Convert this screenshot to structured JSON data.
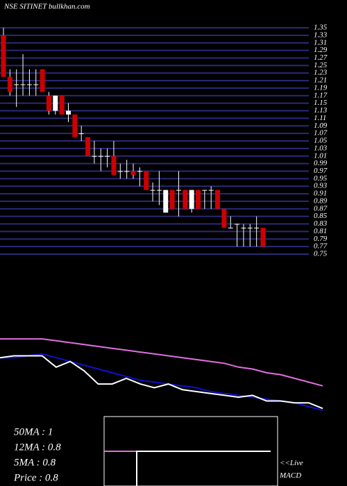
{
  "title": "NSE SITINET bullkhan.com",
  "chart_data": [
    {
      "type": "candlestick",
      "ylim": [
        0.75,
        1.35
      ],
      "yticks": [
        1.35,
        1.33,
        1.31,
        1.29,
        1.27,
        1.25,
        1.23,
        1.21,
        1.19,
        1.17,
        1.15,
        1.13,
        1.11,
        1.09,
        1.07,
        1.05,
        1.03,
        1.01,
        0.99,
        0.97,
        0.95,
        0.93,
        0.91,
        0.89,
        0.87,
        0.85,
        0.83,
        0.81,
        0.79,
        0.77,
        0.75
      ],
      "grid": true,
      "grid_color": "#2a2a7a",
      "up_color": "#ffffff",
      "down_color": "#cc0000",
      "open": [
        1.33,
        1.22,
        1.2,
        1.2,
        1.2,
        1.2,
        1.24,
        1.17,
        1.13,
        1.17,
        1.12,
        1.12,
        1.07,
        1.06,
        1.01,
        1.01,
        1.01,
        1.01,
        0.97,
        0.97,
        0.97,
        0.97,
        0.97,
        0.92,
        0.92,
        0.86,
        0.92,
        0.92,
        0.92,
        0.87,
        0.92,
        0.92,
        0.92,
        0.92,
        0.87,
        0.82,
        0.83,
        0.82,
        0.82,
        0.82,
        0.82
      ],
      "high": [
        1.35,
        1.24,
        1.24,
        1.28,
        1.24,
        1.24,
        1.24,
        1.18,
        1.17,
        1.17,
        1.15,
        1.12,
        1.09,
        1.06,
        1.05,
        1.03,
        1.03,
        1.05,
        0.99,
        1.0,
        0.99,
        0.98,
        0.97,
        0.94,
        0.97,
        0.92,
        0.92,
        0.97,
        0.92,
        0.92,
        0.92,
        0.92,
        0.93,
        0.92,
        0.87,
        0.85,
        0.83,
        0.83,
        0.83,
        0.85,
        0.82
      ],
      "low": [
        1.22,
        1.17,
        1.14,
        1.17,
        1.17,
        1.17,
        1.18,
        1.12,
        1.12,
        1.12,
        1.1,
        1.06,
        1.05,
        1.01,
        0.99,
        0.97,
        0.98,
        0.96,
        0.95,
        0.95,
        0.95,
        0.93,
        0.92,
        0.89,
        0.88,
        0.86,
        0.87,
        0.85,
        0.87,
        0.86,
        0.87,
        0.87,
        0.87,
        0.87,
        0.82,
        0.82,
        0.77,
        0.77,
        0.77,
        0.77,
        0.77
      ],
      "close": [
        1.22,
        1.18,
        1.2,
        1.2,
        1.2,
        1.2,
        1.18,
        1.13,
        1.17,
        1.12,
        1.13,
        1.06,
        1.07,
        1.01,
        1.01,
        1.01,
        1.01,
        0.96,
        0.97,
        0.97,
        0.96,
        0.97,
        0.92,
        0.92,
        0.92,
        0.92,
        0.87,
        0.92,
        0.87,
        0.92,
        0.87,
        0.92,
        0.92,
        0.87,
        0.82,
        0.82,
        0.83,
        0.82,
        0.82,
        0.82,
        0.77
      ]
    },
    {
      "type": "line",
      "ylim": [
        0.72,
        1.2
      ],
      "series": [
        {
          "name": "50MA : 1",
          "color": "#e070e0",
          "values": [
            1.17,
            1.17,
            1.17,
            1.17,
            1.16,
            1.15,
            1.14,
            1.13,
            1.12,
            1.11,
            1.1,
            1.09,
            1.08,
            1.07,
            1.06,
            1.05,
            1.04,
            1.02,
            1.01,
            0.99,
            0.98,
            0.96,
            0.94,
            0.92
          ]
        },
        {
          "name": "12MA : 0.8",
          "color": "#1010d0",
          "values": [
            1.07,
            1.07,
            1.08,
            1.09,
            1.07,
            1.05,
            1.03,
            1.01,
            0.99,
            0.97,
            0.95,
            0.94,
            0.93,
            0.92,
            0.91,
            0.89,
            0.88,
            0.87,
            0.86,
            0.85,
            0.84,
            0.83,
            0.81,
            0.79
          ]
        },
        {
          "name": "5MA : 0.8",
          "color": "#ffffff",
          "values": [
            1.07,
            1.08,
            1.08,
            1.08,
            1.02,
            1.05,
            1.0,
            0.93,
            0.93,
            0.96,
            0.93,
            0.91,
            0.93,
            0.9,
            0.89,
            0.88,
            0.87,
            0.86,
            0.87,
            0.84,
            0.84,
            0.83,
            0.83,
            0.8
          ]
        }
      ],
      "price_label": "Price   : 0.8"
    },
    {
      "type": "macd",
      "label": "<<Live MACD"
    }
  ]
}
